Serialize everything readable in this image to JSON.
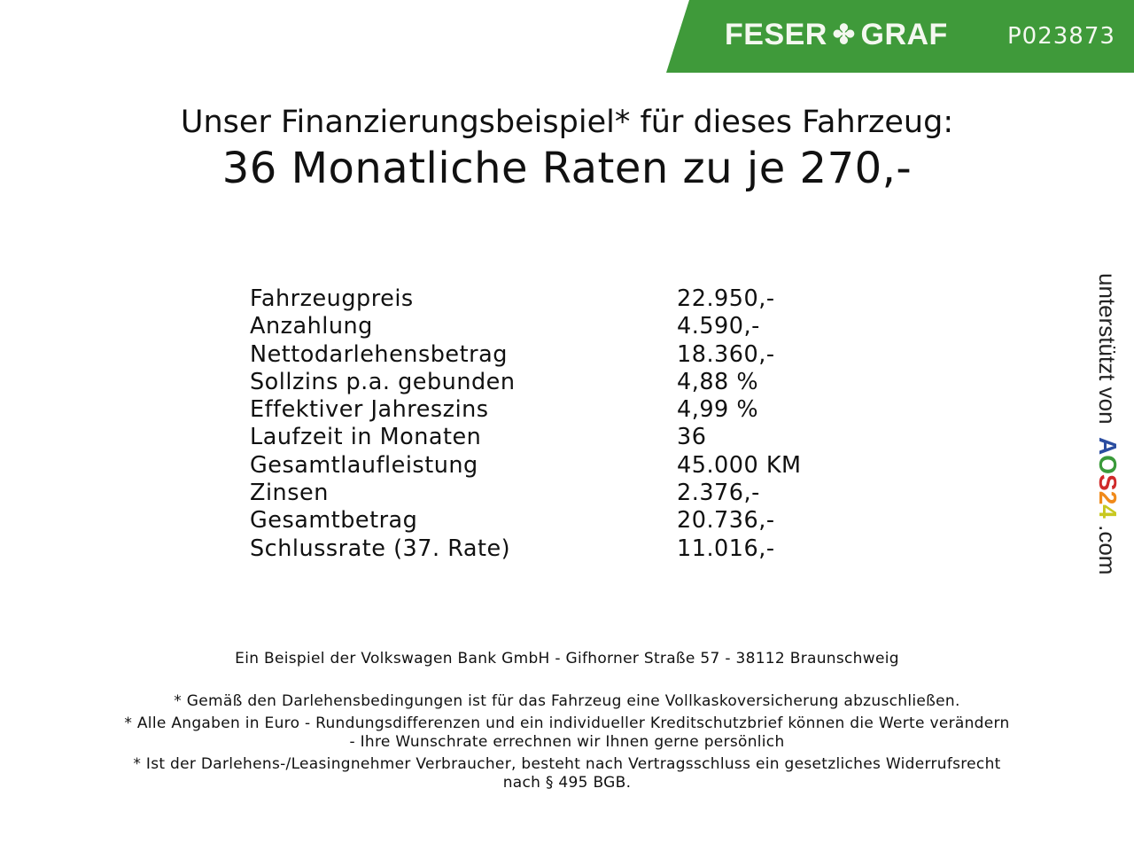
{
  "colors": {
    "brand": "#3f9a3a",
    "aos": [
      "#2b4da0",
      "#3a9a3a",
      "#d02a2a",
      "#f08a1a",
      "#c8c820"
    ]
  },
  "header": {
    "logo_left": "FESER",
    "logo_icon": "clover-icon",
    "logo_right": "GRAF",
    "code": "P023873"
  },
  "title": {
    "line1": "Unser Finanzierungsbeispiel* für dieses Fahrzeug:",
    "line2": "36 Monatliche Raten zu je 270,-"
  },
  "rows": [
    {
      "label": "Fahrzeugpreis",
      "value": "22.950,-"
    },
    {
      "label": "Anzahlung",
      "value": "4.590,-"
    },
    {
      "label": "Nettodarlehensbetrag",
      "value": "18.360,-"
    },
    {
      "label": "Sollzins p.a. gebunden",
      "value": "4,88 %"
    },
    {
      "label": "Effektiver Jahreszins",
      "value": "4,99 %"
    },
    {
      "label": "Laufzeit in Monaten",
      "value": "36"
    },
    {
      "label": "Gesamtlaufleistung",
      "value": "45.000 KM"
    },
    {
      "label": "Zinsen",
      "value": "2.376,-"
    },
    {
      "label": "Gesamtbetrag",
      "value": "20.736,-"
    },
    {
      "label": "Schlussrate (37. Rate)",
      "value": "11.016,-"
    }
  ],
  "footer": {
    "bank": "Ein Beispiel der Volkswagen Bank GmbH - Gifhorner Straße 57 - 38112 Braunschweig",
    "note1": "* Gemäß den Darlehensbedingungen ist für das Fahrzeug eine Vollkaskoversicherung abzuschließen.",
    "note2a": "* Alle Angaben in Euro - Rundungsdifferenzen und ein individueller Kreditschutzbrief können die Werte verändern",
    "note2b": "- Ihre Wunschrate errechnen wir Ihnen gerne persönlich",
    "note3a": "* Ist der Darlehens-/Leasingnehmer Verbraucher, besteht nach Vertragsschluss ein gesetzliches Widerrufsrecht",
    "note3b": "nach § 495 BGB."
  },
  "side": {
    "prefix": "unterstützt von",
    "brand": [
      "A",
      "O",
      "S",
      "2",
      "4"
    ],
    "suffix": ".com"
  }
}
